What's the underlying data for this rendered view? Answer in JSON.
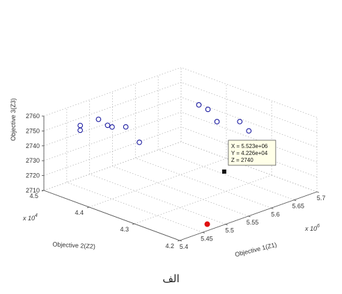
{
  "chart_data": {
    "type": "scatter",
    "title": "",
    "xlabel": "Objective 1(Z1)",
    "ylabel": "Objective 2(Z2)",
    "zlabel": "Objective 3(Z3)",
    "x_multiplier": "x 10",
    "x_exponent": "6",
    "y_multiplier": "x 10",
    "y_exponent": "4",
    "xlim": [
      5.4,
      5.7
    ],
    "ylim": [
      4.2,
      4.5
    ],
    "zlim": [
      2710,
      2760
    ],
    "x_ticks": [
      "5.4",
      "5.45",
      "5.5",
      "5.55",
      "5.6",
      "5.65",
      "5.7"
    ],
    "y_ticks": [
      "4.2",
      "4.3",
      "4.4",
      "4.5"
    ],
    "z_ticks": [
      "2710",
      "2720",
      "2730",
      "2740",
      "2750",
      "2760"
    ],
    "grid": true,
    "points": [
      {
        "x": 5.42,
        "y": 4.44,
        "z": 2755
      },
      {
        "x": 5.43,
        "y": 4.45,
        "z": 2756
      },
      {
        "x": 5.46,
        "y": 4.44,
        "z": 2758
      },
      {
        "x": 5.47,
        "y": 4.43,
        "z": 2754
      },
      {
        "x": 5.47,
        "y": 4.42,
        "z": 2754
      },
      {
        "x": 5.49,
        "y": 4.41,
        "z": 2753
      },
      {
        "x": 5.49,
        "y": 4.38,
        "z": 2746
      },
      {
        "x": 5.62,
        "y": 4.38,
        "z": 2757
      },
      {
        "x": 5.63,
        "y": 4.37,
        "z": 2754
      },
      {
        "x": 5.63,
        "y": 4.35,
        "z": 2748
      },
      {
        "x": 5.66,
        "y": 4.33,
        "z": 2747
      },
      {
        "x": 5.66,
        "y": 4.31,
        "z": 2743
      }
    ],
    "highlight_point": {
      "x": 5.48,
      "y": 4.22,
      "z": 2710,
      "color": "#e01010"
    },
    "selected_point": {
      "x": 5.523,
      "y": 4.226,
      "z": 2740,
      "color": "#111111"
    },
    "marker_color": "#1a1aa0",
    "datatip": [
      "X = 5.523e+06",
      "Y = 4.226e+04",
      "Z = 2740"
    ]
  },
  "caption": "الف"
}
